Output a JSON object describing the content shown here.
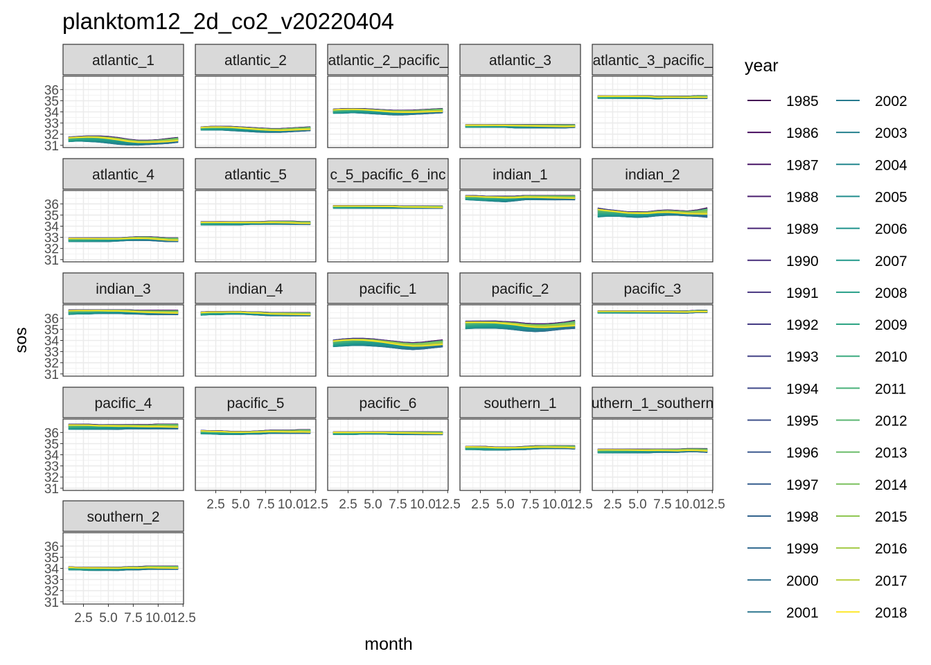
{
  "chart_data": {
    "type": "line",
    "title": "planktom12_2d_co2_v20220404",
    "xlabel": "month",
    "ylabel": "sos",
    "x_ticks": [
      2.5,
      5.0,
      7.5,
      10.0,
      12.5
    ],
    "x_tick_labels": [
      "2.5",
      "5.0",
      "7.5",
      "10.0",
      "12.5"
    ],
    "xlim": [
      0.45,
      12.55
    ],
    "y_ticks": [
      31,
      32,
      33,
      34,
      35,
      36
    ],
    "y_tick_labels": [
      "31",
      "32",
      "33",
      "34",
      "35",
      "36"
    ],
    "ylim": [
      30.8,
      37.2
    ],
    "grid": true,
    "legend": {
      "title": "year",
      "placement": "right",
      "columns": 2,
      "entries": [
        {
          "label": "1985",
          "color": "#440154"
        },
        {
          "label": "1986",
          "color": "#460b5e"
        },
        {
          "label": "1987",
          "color": "#471365"
        },
        {
          "label": "1988",
          "color": "#481c6e"
        },
        {
          "label": "1989",
          "color": "#482475"
        },
        {
          "label": "1990",
          "color": "#472c7a"
        },
        {
          "label": "1991",
          "color": "#46337f"
        },
        {
          "label": "1992",
          "color": "#443a83"
        },
        {
          "label": "1993",
          "color": "#424186"
        },
        {
          "label": "1994",
          "color": "#3f4889"
        },
        {
          "label": "1995",
          "color": "#3c4f8a"
        },
        {
          "label": "1996",
          "color": "#39568c"
        },
        {
          "label": "1997",
          "color": "#355c8d"
        },
        {
          "label": "1998",
          "color": "#32628d"
        },
        {
          "label": "1999",
          "color": "#2f688e"
        },
        {
          "label": "2000",
          "color": "#2d6e8e"
        },
        {
          "label": "2001",
          "color": "#2a748e"
        },
        {
          "label": "2002",
          "color": "#277a8e"
        },
        {
          "label": "2003",
          "color": "#25808e"
        },
        {
          "label": "2004",
          "color": "#22868d"
        },
        {
          "label": "2005",
          "color": "#1f8c8c"
        },
        {
          "label": "2006",
          "color": "#1f928c"
        },
        {
          "label": "2007",
          "color": "#20988a"
        },
        {
          "label": "2008",
          "color": "#259e87"
        },
        {
          "label": "2009",
          "color": "#2ea484"
        },
        {
          "label": "2010",
          "color": "#3aaa7f"
        },
        {
          "label": "2011",
          "color": "#48b079"
        },
        {
          "label": "2012",
          "color": "#58b671"
        },
        {
          "label": "2013",
          "color": "#69bb68"
        },
        {
          "label": "2014",
          "color": "#7bc15e"
        },
        {
          "label": "2015",
          "color": "#8fc652"
        },
        {
          "label": "2016",
          "color": "#a3ca45"
        },
        {
          "label": "2017",
          "color": "#b8ce38"
        },
        {
          "label": "2018",
          "color": "#fde725"
        }
      ]
    },
    "panels": [
      {
        "name": "atlantic_1",
        "low": [
          31.3,
          31.35,
          31.3,
          31.25,
          31.15,
          31.05,
          31.0,
          31.0,
          31.05,
          31.1,
          31.15,
          31.25
        ],
        "high": [
          31.75,
          31.8,
          31.85,
          31.85,
          31.8,
          31.7,
          31.55,
          31.45,
          31.45,
          31.5,
          31.6,
          31.7
        ]
      },
      {
        "name": "atlantic_2",
        "low": [
          32.35,
          32.35,
          32.35,
          32.3,
          32.25,
          32.2,
          32.15,
          32.15,
          32.15,
          32.2,
          32.25,
          32.3
        ],
        "high": [
          32.65,
          32.7,
          32.7,
          32.7,
          32.65,
          32.6,
          32.55,
          32.5,
          32.5,
          32.55,
          32.6,
          32.65
        ]
      },
      {
        "name": "atlantic_2_pacific_",
        "low": [
          33.85,
          33.85,
          33.9,
          33.85,
          33.8,
          33.75,
          33.7,
          33.7,
          33.75,
          33.8,
          33.85,
          33.9
        ],
        "high": [
          34.25,
          34.3,
          34.3,
          34.3,
          34.25,
          34.2,
          34.15,
          34.15,
          34.15,
          34.2,
          34.25,
          34.3
        ]
      },
      {
        "name": "atlantic_3",
        "low": [
          32.6,
          32.6,
          32.6,
          32.6,
          32.6,
          32.55,
          32.55,
          32.55,
          32.55,
          32.55,
          32.55,
          32.6
        ],
        "high": [
          32.85,
          32.85,
          32.85,
          32.85,
          32.85,
          32.85,
          32.85,
          32.85,
          32.85,
          32.85,
          32.85,
          32.85
        ]
      },
      {
        "name": "atlantic_3_pacific_",
        "low": [
          35.2,
          35.2,
          35.2,
          35.2,
          35.2,
          35.2,
          35.15,
          35.2,
          35.2,
          35.2,
          35.2,
          35.2
        ],
        "high": [
          35.45,
          35.45,
          35.45,
          35.45,
          35.45,
          35.45,
          35.4,
          35.4,
          35.4,
          35.4,
          35.45,
          35.45
        ]
      },
      {
        "name": "atlantic_4",
        "low": [
          32.6,
          32.6,
          32.6,
          32.6,
          32.6,
          32.65,
          32.7,
          32.7,
          32.7,
          32.65,
          32.6,
          32.6
        ],
        "high": [
          32.95,
          32.95,
          32.95,
          32.95,
          32.95,
          32.95,
          33.0,
          33.05,
          33.05,
          33.0,
          32.95,
          32.95
        ]
      },
      {
        "name": "atlantic_5",
        "low": [
          34.1,
          34.1,
          34.1,
          34.1,
          34.1,
          34.15,
          34.15,
          34.15,
          34.15,
          34.15,
          34.15,
          34.15
        ],
        "high": [
          34.4,
          34.4,
          34.4,
          34.4,
          34.4,
          34.4,
          34.4,
          34.45,
          34.45,
          34.45,
          34.4,
          34.4
        ]
      },
      {
        "name": "c_5_pacific_6_inc",
        "low": [
          35.6,
          35.6,
          35.6,
          35.6,
          35.6,
          35.6,
          35.6,
          35.6,
          35.6,
          35.6,
          35.6,
          35.6
        ],
        "high": [
          35.85,
          35.85,
          35.85,
          35.85,
          35.85,
          35.85,
          35.85,
          35.8,
          35.8,
          35.8,
          35.8,
          35.8
        ]
      },
      {
        "name": "indian_1",
        "low": [
          36.35,
          36.3,
          36.25,
          36.2,
          36.15,
          36.25,
          36.35,
          36.35,
          36.35,
          36.35,
          36.35,
          36.35
        ],
        "high": [
          36.75,
          36.75,
          36.7,
          36.7,
          36.7,
          36.7,
          36.75,
          36.75,
          36.75,
          36.75,
          36.75,
          36.75
        ]
      },
      {
        "name": "indian_2",
        "low": [
          34.75,
          34.85,
          34.85,
          34.8,
          34.75,
          34.8,
          34.9,
          34.95,
          34.95,
          34.9,
          34.85,
          34.75
        ],
        "high": [
          35.65,
          35.5,
          35.4,
          35.3,
          35.3,
          35.3,
          35.4,
          35.45,
          35.4,
          35.35,
          35.45,
          35.65
        ]
      },
      {
        "name": "indian_3",
        "low": [
          36.3,
          36.35,
          36.35,
          36.4,
          36.4,
          36.4,
          36.35,
          36.35,
          36.3,
          36.3,
          36.3,
          36.3
        ],
        "high": [
          36.75,
          36.75,
          36.75,
          36.75,
          36.75,
          36.75,
          36.75,
          36.7,
          36.7,
          36.7,
          36.7,
          36.7
        ]
      },
      {
        "name": "indian_4",
        "low": [
          36.25,
          36.3,
          36.3,
          36.35,
          36.35,
          36.3,
          36.25,
          36.2,
          36.2,
          36.2,
          36.2,
          36.2
        ],
        "high": [
          36.55,
          36.6,
          36.6,
          36.6,
          36.6,
          36.55,
          36.55,
          36.5,
          36.5,
          36.5,
          36.5,
          36.5
        ]
      },
      {
        "name": "pacific_1",
        "low": [
          33.4,
          33.45,
          33.5,
          33.5,
          33.45,
          33.4,
          33.3,
          33.2,
          33.15,
          33.2,
          33.3,
          33.4
        ],
        "high": [
          34.05,
          34.15,
          34.2,
          34.2,
          34.15,
          34.05,
          33.95,
          33.85,
          33.8,
          33.85,
          33.95,
          34.05
        ]
      },
      {
        "name": "pacific_2",
        "low": [
          35.0,
          35.05,
          35.05,
          35.05,
          35.0,
          34.9,
          34.8,
          34.75,
          34.8,
          34.9,
          35.0,
          35.05
        ],
        "high": [
          35.75,
          35.75,
          35.75,
          35.75,
          35.7,
          35.65,
          35.55,
          35.5,
          35.5,
          35.55,
          35.65,
          35.8
        ]
      },
      {
        "name": "pacific_3",
        "low": [
          36.45,
          36.45,
          36.45,
          36.45,
          36.45,
          36.45,
          36.45,
          36.45,
          36.45,
          36.45,
          36.5,
          36.5
        ],
        "high": [
          36.65,
          36.65,
          36.65,
          36.65,
          36.65,
          36.65,
          36.65,
          36.65,
          36.65,
          36.65,
          36.7,
          36.7
        ]
      },
      {
        "name": "pacific_4",
        "low": [
          36.25,
          36.25,
          36.25,
          36.25,
          36.25,
          36.25,
          36.3,
          36.3,
          36.3,
          36.3,
          36.3,
          36.3
        ],
        "high": [
          36.75,
          36.75,
          36.75,
          36.7,
          36.7,
          36.7,
          36.7,
          36.7,
          36.7,
          36.75,
          36.75,
          36.75
        ]
      },
      {
        "name": "pacific_5",
        "low": [
          35.85,
          35.85,
          35.8,
          35.8,
          35.8,
          35.85,
          35.85,
          35.9,
          35.9,
          35.9,
          35.9,
          35.9
        ],
        "high": [
          36.2,
          36.15,
          36.15,
          36.1,
          36.1,
          36.1,
          36.15,
          36.2,
          36.2,
          36.2,
          36.25,
          36.25
        ]
      },
      {
        "name": "pacific_6",
        "low": [
          35.8,
          35.8,
          35.8,
          35.85,
          35.85,
          35.85,
          35.8,
          35.8,
          35.8,
          35.8,
          35.8,
          35.8
        ],
        "high": [
          36.05,
          36.05,
          36.05,
          36.05,
          36.05,
          36.05,
          36.05,
          36.05,
          36.05,
          36.05,
          36.05,
          36.05
        ]
      },
      {
        "name": "southern_1",
        "low": [
          34.45,
          34.45,
          34.4,
          34.4,
          34.4,
          34.45,
          34.45,
          34.5,
          34.55,
          34.55,
          34.55,
          34.5
        ],
        "high": [
          34.75,
          34.75,
          34.75,
          34.7,
          34.7,
          34.7,
          34.75,
          34.8,
          34.8,
          34.8,
          34.8,
          34.8
        ]
      },
      {
        "name": "uthern_1_southern",
        "low": [
          34.15,
          34.15,
          34.15,
          34.15,
          34.15,
          34.15,
          34.2,
          34.2,
          34.2,
          34.25,
          34.25,
          34.2
        ],
        "high": [
          34.5,
          34.5,
          34.5,
          34.5,
          34.5,
          34.5,
          34.5,
          34.5,
          34.5,
          34.55,
          34.55,
          34.55
        ]
      },
      {
        "name": "southern_2",
        "low": [
          33.85,
          33.85,
          33.8,
          33.8,
          33.8,
          33.8,
          33.85,
          33.85,
          33.9,
          33.9,
          33.9,
          33.9
        ],
        "high": [
          34.15,
          34.1,
          34.1,
          34.1,
          34.1,
          34.1,
          34.15,
          34.15,
          34.2,
          34.2,
          34.2,
          34.2
        ]
      }
    ]
  }
}
